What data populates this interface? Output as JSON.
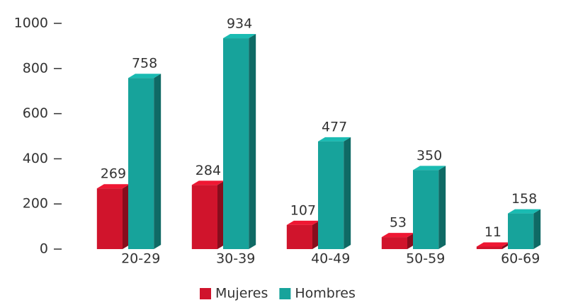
{
  "chart_data": {
    "type": "bar",
    "categories": [
      "20-29",
      "30-39",
      "40-49",
      "50-59",
      "60-69"
    ],
    "series": [
      {
        "name": "Mujeres",
        "color": "#d0142c",
        "values": [
          269,
          284,
          107,
          53,
          11
        ]
      },
      {
        "name": "Hombres",
        "color": "#17a39b",
        "values": [
          758,
          934,
          477,
          350,
          158
        ]
      }
    ],
    "ylim": [
      0,
      1000
    ],
    "yticks": [
      0,
      200,
      400,
      600,
      800,
      1000
    ],
    "legend": "bottom"
  }
}
